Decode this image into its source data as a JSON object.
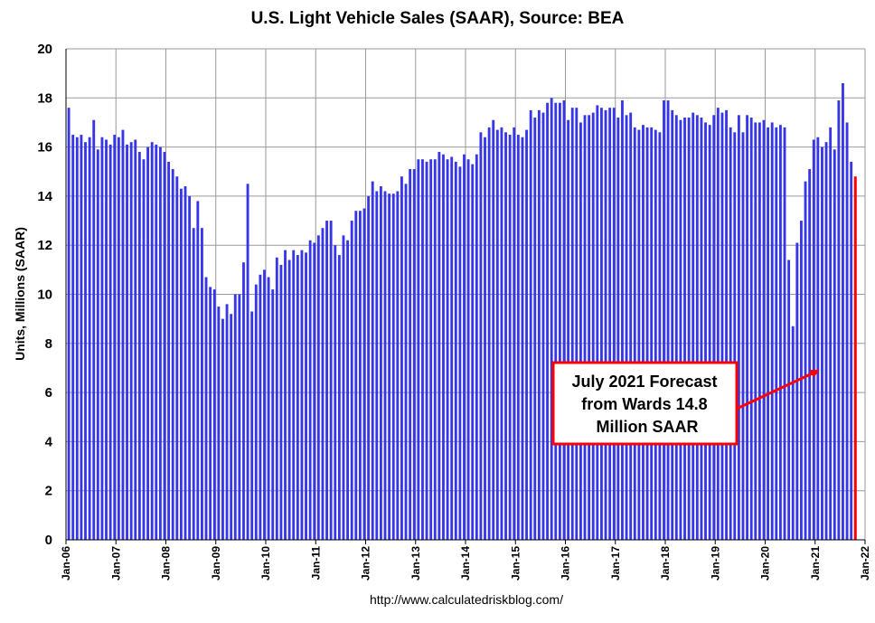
{
  "chart_data": {
    "type": "bar",
    "title": "U.S. Light Vehicle Sales (SAAR), Source: BEA",
    "ylabel": "Units, Millions (SAAR)",
    "xlabel": "",
    "ylim": [
      0,
      20
    ],
    "yticks": [
      0,
      2,
      4,
      6,
      8,
      10,
      12,
      14,
      16,
      18,
      20
    ],
    "xticks": [
      "Jan-06",
      "Jan-07",
      "Jan-08",
      "Jan-09",
      "Jan-10",
      "Jan-11",
      "Jan-12",
      "Jan-13",
      "Jan-14",
      "Jan-15",
      "Jan-16",
      "Jan-17",
      "Jan-18",
      "Jan-19",
      "Jan-20",
      "Jan-21",
      "Jan-22"
    ],
    "grid": true,
    "start": "Jan-06",
    "frequency": "monthly",
    "bar_color": "#3636e8",
    "highlight_color": "#ff0000",
    "values": [
      17.6,
      16.5,
      16.4,
      16.5,
      16.2,
      16.4,
      17.1,
      15.9,
      16.4,
      16.3,
      16.1,
      16.5,
      16.4,
      16.7,
      16.1,
      16.2,
      16.3,
      15.8,
      15.5,
      16.0,
      16.2,
      16.1,
      16.0,
      15.8,
      15.4,
      15.1,
      14.8,
      14.3,
      14.4,
      14.0,
      12.7,
      13.8,
      12.7,
      10.7,
      10.3,
      10.2,
      9.5,
      9.0,
      9.6,
      9.2,
      10.0,
      10.0,
      11.3,
      14.5,
      9.3,
      10.4,
      10.8,
      11.0,
      10.7,
      10.2,
      11.5,
      11.2,
      11.8,
      11.4,
      11.8,
      11.6,
      11.8,
      11.7,
      12.2,
      12.1,
      12.4,
      12.7,
      13.0,
      13.0,
      12.0,
      11.6,
      12.4,
      12.2,
      13.0,
      13.4,
      13.4,
      13.5,
      14.0,
      14.6,
      14.2,
      14.4,
      14.2,
      14.1,
      14.1,
      14.2,
      14.8,
      14.5,
      15.1,
      15.1,
      15.5,
      15.5,
      15.4,
      15.5,
      15.5,
      15.8,
      15.7,
      15.5,
      15.6,
      15.4,
      15.2,
      15.7,
      15.5,
      15.3,
      15.7,
      16.6,
      16.4,
      16.8,
      17.1,
      16.7,
      16.8,
      16.6,
      16.5,
      16.8,
      16.5,
      16.4,
      16.7,
      17.5,
      17.2,
      17.5,
      17.4,
      17.8,
      18.0,
      17.8,
      17.8,
      17.9,
      17.1,
      17.6,
      17.6,
      17.0,
      17.3,
      17.3,
      17.4,
      17.7,
      17.6,
      17.5,
      17.6,
      17.6,
      17.2,
      17.9,
      17.3,
      17.4,
      16.8,
      16.7,
      16.9,
      16.8,
      16.8,
      16.7,
      16.6,
      17.9,
      17.9,
      17.5,
      17.3,
      17.1,
      17.2,
      17.2,
      17.4,
      17.3,
      17.2,
      17.0,
      16.9,
      17.3,
      17.6,
      17.4,
      17.5,
      16.8,
      16.6,
      17.3,
      16.6,
      17.3,
      17.2,
      17.0,
      17.0,
      17.1,
      16.8,
      17.0,
      16.8,
      16.9,
      16.8,
      11.4,
      8.7,
      12.1,
      13.0,
      14.6,
      15.1,
      16.3,
      16.4,
      16.0,
      16.2,
      16.8,
      15.9,
      17.9,
      18.6,
      17.0,
      15.4,
      14.8
    ],
    "highlight_last": true,
    "annotation": {
      "lines": [
        "July 2021 Forecast",
        "from Wards 14.8",
        "Million SAAR"
      ],
      "border_color": "#ff0000"
    }
  },
  "source_text": "http://www.calculatedriskblog.com/"
}
